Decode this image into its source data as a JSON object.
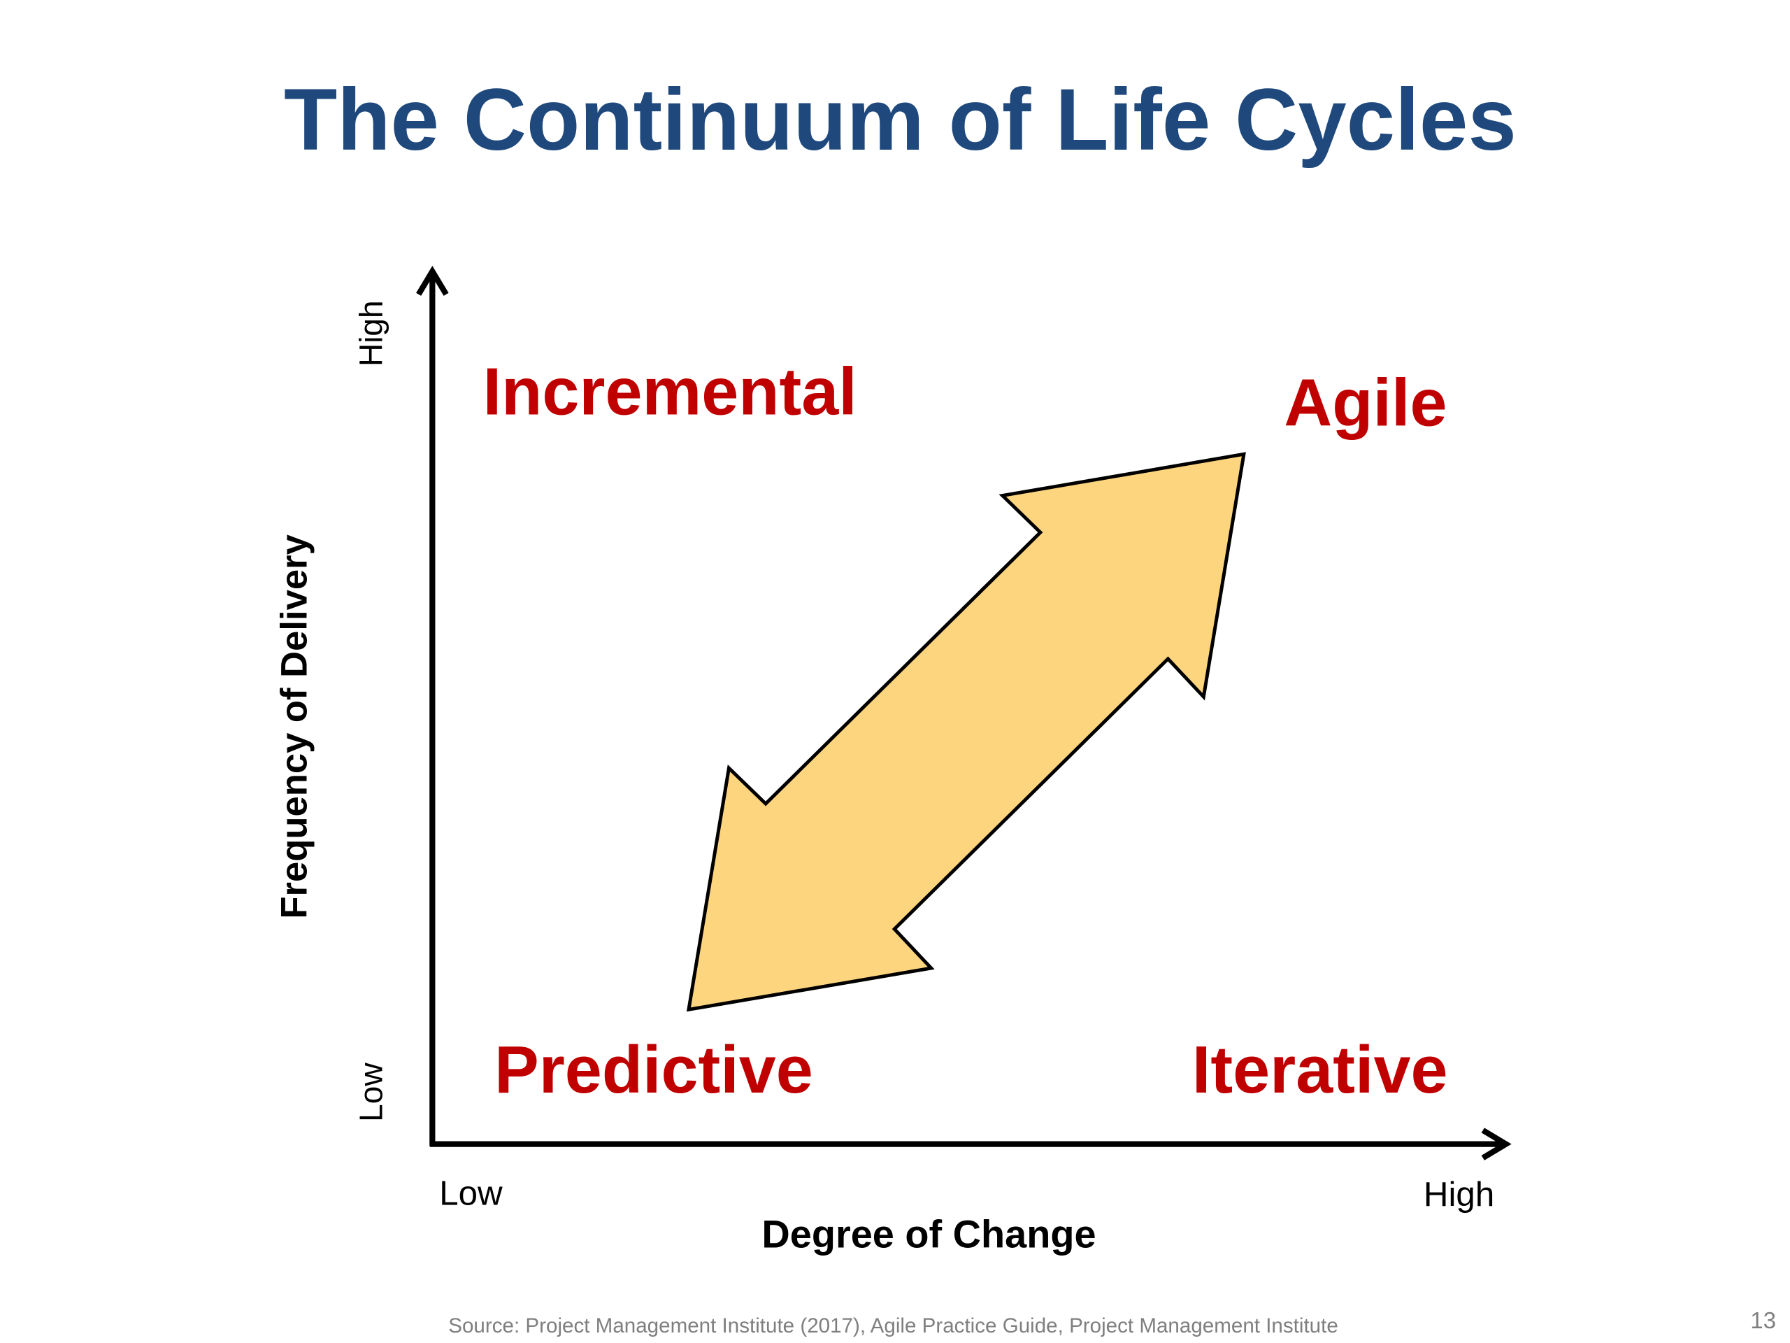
{
  "title": "The Continuum of Life Cycles",
  "y_axis": {
    "label": "Frequency of Delivery",
    "low": "Low",
    "high": "High"
  },
  "x_axis": {
    "label": "Degree of Change",
    "low": "Low",
    "high": "High"
  },
  "quadrants": {
    "top_left": "Incremental",
    "top_right": "Agile",
    "bottom_left": "Predictive",
    "bottom_right": "Iterative"
  },
  "footer": {
    "source": "Source: Project Management Institute (2017), Agile Practice Guide, Project Management Institute",
    "page_number": "13"
  }
}
